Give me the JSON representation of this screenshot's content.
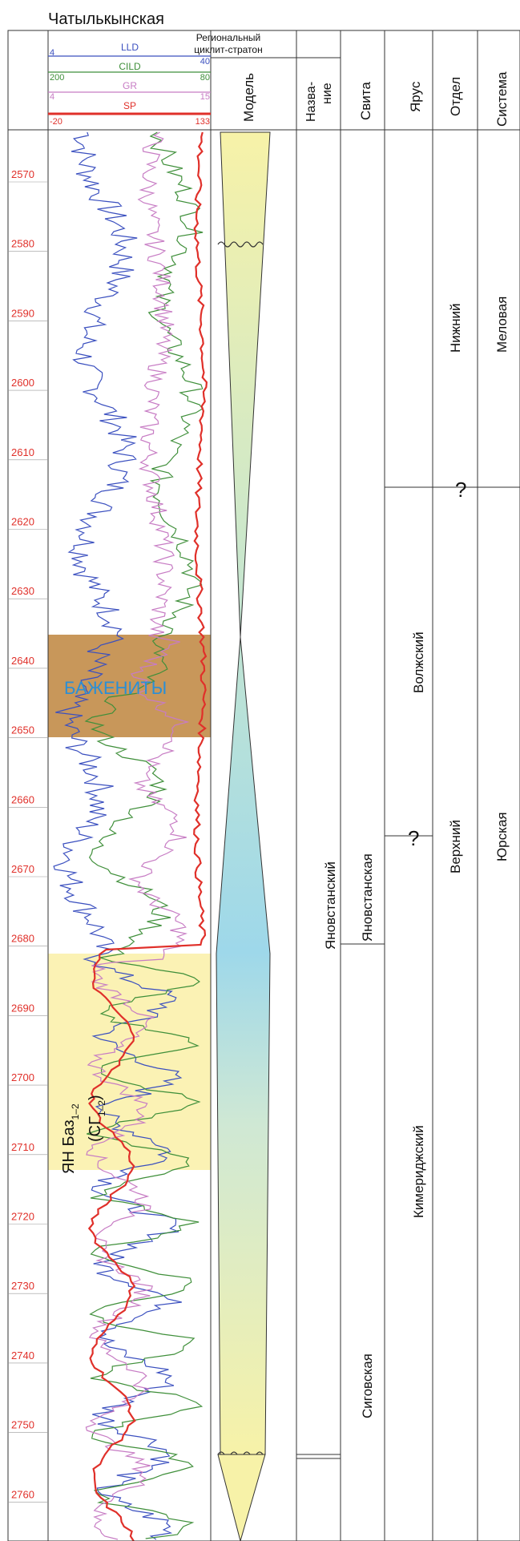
{
  "title": "Чатылькынская",
  "header": {
    "regional": "Региональный",
    "cyclite": "циклит-стратон",
    "model": "Модель",
    "name_line1": "Назва-",
    "name_line2": "ние",
    "svita": "Свита",
    "yarus": "Ярус",
    "otdel": "Отдел",
    "sistema": "Система"
  },
  "curves": [
    {
      "name": "LLD",
      "min": "4",
      "max": "40",
      "color": "#3a4fbf"
    },
    {
      "name": "CILD",
      "min": "200",
      "max": "80",
      "color": "#3f8f3a"
    },
    {
      "name": "GR",
      "min": "4",
      "max": "15",
      "color": "#c77cc4"
    },
    {
      "name": "SP",
      "min": "-20",
      "max": "133",
      "color": "#e0302a"
    }
  ],
  "depths": [
    "2570",
    "2580",
    "2590",
    "2600",
    "2610",
    "2620",
    "2630",
    "2640",
    "2650",
    "2660",
    "2670",
    "2680",
    "2690",
    "2700",
    "2710",
    "2720",
    "2730",
    "2740",
    "2750",
    "2760"
  ],
  "bazhenity_label": "БАЖЕНИТЫ",
  "yan_label": "ЯН Баз",
  "yan_sub": "1–2",
  "sg_label": "(СГ",
  "sg_sub": "1–2",
  "sg_close": ")",
  "stratons": {
    "name": "Яновстанский",
    "svita_upper": "Яновстанская",
    "svita_lower": "Сиговская",
    "yarus_upper": "Волжский",
    "yarus_lower": "Кимериджский",
    "otdel_upper": "Нижний",
    "otdel_lower": "Верхний",
    "sistema_upper": "Меловая",
    "sistema_lower": "Юрская",
    "question": "?"
  },
  "colors": {
    "bazhenity": "#c8975a",
    "yan_zone": "#fbf2b4",
    "depth_label": "#e0302a",
    "bazhenity_text": "#2a8fd6"
  }
}
